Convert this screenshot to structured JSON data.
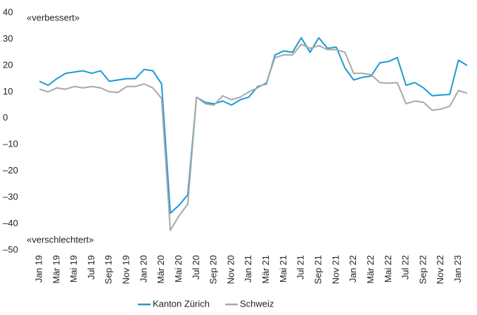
{
  "chart_data": {
    "type": "line",
    "annotations": [
      "«verbessert»",
      "«verschlechtert»"
    ],
    "categories": [
      "Jan 19",
      null,
      "Mär 19",
      null,
      "Mai 19",
      null,
      "Jul 19",
      null,
      "Sep 19",
      null,
      "Nov 19",
      null,
      "Jan 20",
      null,
      "Mär 20",
      null,
      "Mai 20",
      null,
      "Jul 20",
      null,
      "Sep 20",
      null,
      "Nov 20",
      null,
      "Jan 21",
      null,
      "Mär 21",
      null,
      "Mai 21",
      null,
      "Jul 21",
      null,
      "Sep 21",
      null,
      "Nov 21",
      null,
      "Jan 22",
      null,
      "Mär 22",
      null,
      "Mai 22",
      null,
      "Jul 22",
      null,
      "Sep 22",
      null,
      "Nov 22",
      null,
      "Jan 23",
      null
    ],
    "series": [
      {
        "name": "Kanton Zürich",
        "color": "#1a9ad6",
        "values": [
          14,
          12.5,
          15,
          17,
          17.5,
          18,
          17,
          18,
          14,
          14.5,
          15,
          15,
          18.5,
          18,
          13,
          -36,
          -33,
          -29,
          8,
          6,
          5.5,
          6.5,
          5,
          7,
          8,
          12,
          13,
          24,
          25.5,
          25,
          30.5,
          25,
          30.5,
          26.5,
          27,
          19,
          14.5,
          15.5,
          16,
          21,
          21.5,
          23,
          12.5,
          13.5,
          11.5,
          8.5,
          8.8,
          9,
          22,
          20
        ]
      },
      {
        "name": "Schweiz",
        "color": "#a8a8a8",
        "values": [
          11,
          10,
          11.5,
          11,
          12,
          11.5,
          12,
          11.5,
          10,
          9.8,
          12,
          12,
          13,
          11.5,
          7.5,
          -42.5,
          -37,
          -32.5,
          8,
          5.5,
          5,
          8.5,
          7,
          8,
          10,
          11.5,
          13.5,
          23,
          24,
          24,
          28,
          26.5,
          27.5,
          26,
          26,
          25,
          17,
          17,
          16.5,
          13.5,
          13.3,
          13.5,
          5.5,
          6.5,
          6,
          3,
          3.5,
          4.5,
          10.5,
          9.5
        ]
      }
    ],
    "ylim": [
      -50,
      40
    ],
    "yticks": [
      40,
      30,
      20,
      10,
      0,
      {
        "value": -10,
        "label": "–10"
      },
      {
        "value": -20,
        "label": "–20"
      },
      {
        "value": -30,
        "label": "–30"
      },
      {
        "value": -40,
        "label": "–40"
      },
      {
        "value": -50,
        "label": "–50"
      }
    ],
    "grid": false
  }
}
